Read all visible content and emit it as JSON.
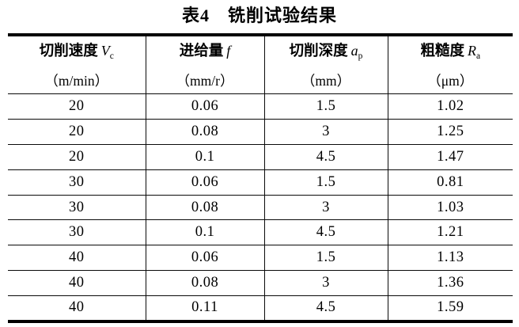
{
  "title": "表4　铣削试验结果",
  "table": {
    "columns": [
      {
        "name_cn": "切削速度",
        "symbol": "V",
        "symbol_sub": "c",
        "unit": "（m/min）"
      },
      {
        "name_cn": "进给量",
        "symbol": "f",
        "symbol_sub": "",
        "unit": "（mm/r）"
      },
      {
        "name_cn": "切削深度",
        "symbol": "a",
        "symbol_sub": "p",
        "unit": "（mm）"
      },
      {
        "name_cn": "粗糙度",
        "symbol": "R",
        "symbol_sub": "a",
        "unit": "（μm）"
      }
    ],
    "rows": [
      [
        "20",
        "0.06",
        "1.5",
        "1.02"
      ],
      [
        "20",
        "0.08",
        "3",
        "1.25"
      ],
      [
        "20",
        "0.1",
        "4.5",
        "1.47"
      ],
      [
        "30",
        "0.06",
        "1.5",
        "0.81"
      ],
      [
        "30",
        "0.08",
        "3",
        "1.03"
      ],
      [
        "30",
        "0.1",
        "4.5",
        "1.21"
      ],
      [
        "40",
        "0.06",
        "1.5",
        "1.13"
      ],
      [
        "40",
        "0.08",
        "3",
        "1.36"
      ],
      [
        "40",
        "0.11",
        "4.5",
        "1.59"
      ]
    ]
  }
}
